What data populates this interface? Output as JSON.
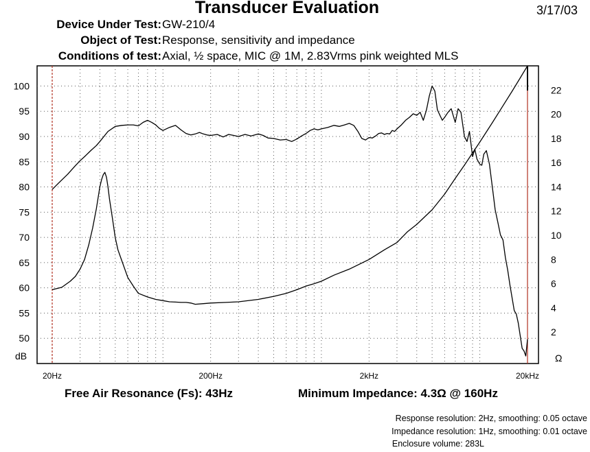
{
  "header": {
    "title": "Transducer Evaluation",
    "date": "3/17/03",
    "rows": [
      {
        "label": "Device Under Test:",
        "value": "GW-210/4"
      },
      {
        "label": "Object of Test:",
        "value": "Response, sensitivity and impedance"
      },
      {
        "label": "Conditions of test:",
        "value": "Axial, ½ space, MIC @ 1M, 2.83Vrms pink weighted MLS"
      }
    ]
  },
  "summary": {
    "fs": "Free Air Resonance (Fs): 43Hz",
    "min_impedance": "Minimum Impedance: 4.3Ω @ 160Hz"
  },
  "footnotes": [
    "Response resolution: 2Hz, smoothing: 0.05 octave",
    "Impedance resolution: 1Hz, smoothing: 0.01 octave",
    "Enclosure volume: 283L"
  ],
  "chart_data": {
    "type": "line",
    "xscale": "log",
    "xlim": [
      20,
      20000
    ],
    "ylim_left": [
      45,
      104
    ],
    "ylim_right": [
      -0.6,
      24
    ],
    "grid": true,
    "left_unit": "dB",
    "right_unit": "Ω",
    "x_ticks": [
      "20Hz",
      "200Hz",
      "2kHz",
      "20kHz"
    ],
    "x_tick_values": [
      20,
      200,
      2000,
      20000
    ],
    "left_ticks": [
      100,
      95,
      90,
      85,
      80,
      75,
      70,
      65,
      60,
      55,
      50
    ],
    "right_ticks": [
      22,
      20,
      18,
      16,
      14,
      12,
      10,
      8,
      6,
      4,
      2
    ],
    "colors": {
      "marker_line": "#b03020",
      "curve": "#000000"
    },
    "series": [
      {
        "axis": "left",
        "x": [
          20,
          22,
          25,
          28,
          30,
          32,
          35,
          38,
          40,
          45,
          50,
          55,
          60,
          65,
          70,
          75,
          80,
          85,
          90,
          95,
          100,
          110,
          120,
          130,
          140,
          150,
          160,
          170,
          180,
          190,
          200,
          220,
          240,
          260,
          280,
          300,
          330,
          360,
          400,
          430,
          460,
          500,
          550,
          600,
          650,
          700,
          750,
          800,
          850,
          900,
          950,
          1000,
          1100,
          1200,
          1300,
          1400,
          1500,
          1600,
          1700,
          1800,
          1900,
          2000,
          2100,
          2200,
          2300,
          2400,
          2500,
          2600,
          2700,
          2800,
          2900,
          3000,
          3200,
          3400,
          3600,
          3800,
          4000,
          4200,
          4400,
          4600,
          4800,
          5000,
          5200,
          5400,
          5600,
          5800,
          6000,
          6300,
          6600,
          7000,
          7300,
          7600,
          8000,
          8300,
          8600,
          9000,
          9300,
          9600,
          10000,
          10300,
          10600,
          11000,
          11500,
          12000,
          12500,
          13000,
          13500,
          14000,
          14500,
          15000,
          15500,
          16000,
          16500,
          17000,
          17500,
          18000,
          18500,
          19000,
          19500,
          20000
        ],
        "y": [
          79.5,
          80.8,
          82.5,
          84.2,
          85.2,
          86.0,
          87.2,
          88.2,
          89.0,
          91.0,
          92.0,
          92.2,
          92.3,
          92.3,
          92.1,
          92.8,
          93.2,
          92.8,
          92.3,
          91.6,
          91.2,
          91.8,
          92.2,
          91.3,
          90.6,
          90.3,
          90.5,
          90.8,
          90.5,
          90.3,
          90.2,
          90.4,
          89.9,
          90.4,
          90.2,
          90.0,
          90.4,
          90.1,
          90.5,
          90.2,
          89.7,
          89.6,
          89.3,
          89.4,
          89.0,
          89.5,
          90.1,
          90.6,
          91.2,
          91.5,
          91.3,
          91.5,
          91.8,
          92.2,
          92.0,
          92.3,
          92.6,
          92.2,
          91.0,
          89.6,
          89.3,
          89.8,
          89.7,
          90.1,
          90.6,
          90.7,
          90.4,
          90.6,
          90.5,
          91.2,
          91.0,
          91.5,
          92.3,
          93.2,
          93.8,
          94.5,
          94.2,
          94.8,
          93.2,
          95.2,
          98.0,
          100.0,
          99.0,
          95.3,
          94.2,
          93.2,
          93.8,
          94.8,
          95.5,
          92.8,
          95.5,
          94.8,
          90.0,
          89.0,
          91.0,
          86.0,
          87.5,
          85.5,
          84.5,
          84.3,
          86.5,
          87.2,
          84.5,
          80.0,
          75.5,
          73.0,
          70.5,
          69.5,
          66.0,
          63.5,
          60.5,
          58.0,
          55.5,
          54.8,
          53.0,
          50.5,
          48.0,
          47.5,
          46.5,
          49.8
        ],
        "name": ""
      },
      {
        "axis": "right",
        "x": [
          20,
          23,
          26,
          28,
          30,
          32,
          34,
          36,
          38,
          40,
          41,
          42,
          43,
          44,
          45,
          46,
          48,
          50,
          52,
          55,
          60,
          65,
          70,
          80,
          90,
          100,
          110,
          120,
          130,
          140,
          150,
          160,
          180,
          200,
          250,
          300,
          400,
          500,
          600,
          700,
          800,
          900,
          1000,
          1200,
          1500,
          2000,
          2500,
          3000,
          3500,
          4000,
          5000,
          6000,
          7000,
          8000,
          9000,
          10000,
          12000,
          14000,
          16000,
          18000,
          20000
        ],
        "y": [
          5.5,
          5.7,
          6.2,
          6.6,
          7.2,
          8.0,
          9.2,
          10.6,
          12.2,
          14.0,
          14.6,
          15.0,
          15.2,
          14.8,
          14.0,
          13.0,
          11.4,
          9.8,
          8.8,
          7.9,
          6.5,
          5.8,
          5.2,
          4.9,
          4.7,
          4.6,
          4.5,
          4.48,
          4.45,
          4.45,
          4.4,
          4.3,
          4.35,
          4.4,
          4.45,
          4.5,
          4.7,
          4.95,
          5.2,
          5.5,
          5.8,
          6.0,
          6.2,
          6.7,
          7.2,
          8.0,
          8.8,
          9.4,
          10.3,
          10.9,
          12.1,
          13.4,
          14.7,
          15.8,
          16.8,
          17.7,
          19.3,
          20.7,
          21.9,
          23.0,
          24.0
        ],
        "name": ""
      }
    ],
    "markers_x": [
      20,
      20000
    ]
  }
}
